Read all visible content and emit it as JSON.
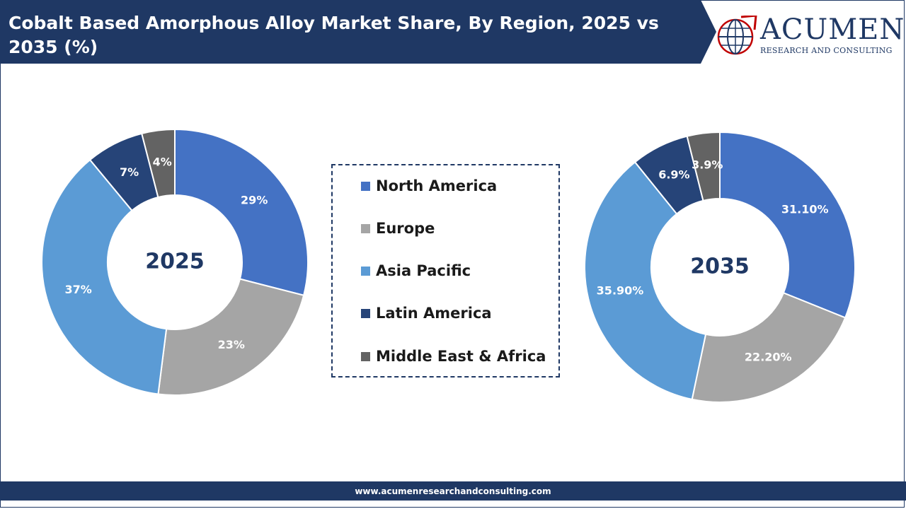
{
  "header": {
    "title": "Cobalt Based Amorphous Alloy Market Share, By Region, 2025 vs 2035 (%)"
  },
  "logo": {
    "name": "ACUMEN",
    "subtitle": "RESEARCH AND CONSULTING"
  },
  "footer": {
    "url": "www.acumenresearchandconsulting.com"
  },
  "colors": {
    "header_bg": "#1f3864",
    "north_america": "#4472c4",
    "europe": "#a5a5a5",
    "asia_pacific": "#5b9bd5",
    "latin_america": "#264478",
    "middle_east_africa": "#636363"
  },
  "legend": {
    "items": [
      {
        "label": "North America",
        "color": "#4472c4"
      },
      {
        "label": "Europe",
        "color": "#a5a5a5"
      },
      {
        "label": "Asia Pacific",
        "color": "#5b9bd5"
      },
      {
        "label": "Latin America",
        "color": "#264478"
      },
      {
        "label": "Middle East & Africa",
        "color": "#636363"
      }
    ]
  },
  "chart_data": [
    {
      "type": "pie",
      "variant": "donut",
      "center_label": "2025",
      "categories": [
        "North America",
        "Europe",
        "Asia Pacific",
        "Latin America",
        "Middle East & Africa"
      ],
      "values": [
        29,
        23,
        37,
        7,
        4
      ],
      "labels": [
        "29%",
        "23%",
        "37%",
        "7%",
        "4%"
      ]
    },
    {
      "type": "pie",
      "variant": "donut",
      "center_label": "2035",
      "categories": [
        "North America",
        "Europe",
        "Asia Pacific",
        "Latin America",
        "Middle East & Africa"
      ],
      "values": [
        31.1,
        22.2,
        35.9,
        6.9,
        3.9
      ],
      "labels": [
        "31.10%",
        "22.20%",
        "35.90%",
        "6.9%",
        "3.9%"
      ]
    }
  ]
}
